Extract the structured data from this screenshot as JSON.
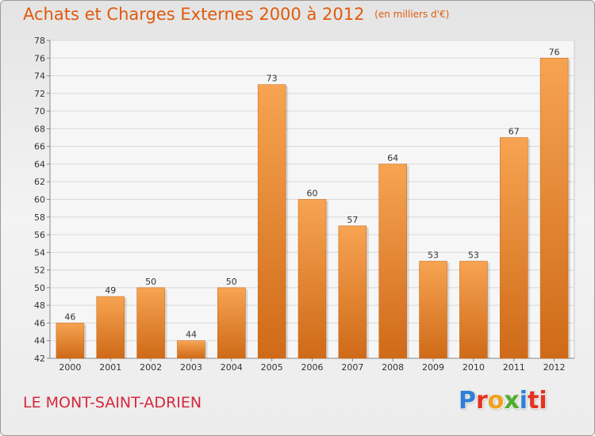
{
  "title": "Achats et Charges Externes 2000 à 2012",
  "subtitle": "(en milliers d'€)",
  "town": "LE MONT-SAINT-ADRIEN",
  "logo": [
    "P",
    "r",
    "o",
    "x",
    "i",
    "ti"
  ],
  "colors": {
    "bar_light": "#f7a452",
    "bar_dark": "#cf6a18",
    "title": "#e05a0c",
    "town": "#d6283d"
  },
  "chart_data": {
    "type": "bar",
    "categories": [
      "2000",
      "2001",
      "2002",
      "2003",
      "2004",
      "2005",
      "2006",
      "2007",
      "2008",
      "2009",
      "2010",
      "2011",
      "2012"
    ],
    "values": [
      46,
      49,
      50,
      44,
      50,
      73,
      60,
      57,
      64,
      53,
      53,
      67,
      76
    ],
    "ylim": [
      42,
      78
    ],
    "yticks": [
      42,
      44,
      46,
      48,
      50,
      52,
      54,
      56,
      58,
      60,
      62,
      64,
      66,
      68,
      70,
      72,
      74,
      76,
      78
    ],
    "grid": true,
    "data_labels": true
  }
}
